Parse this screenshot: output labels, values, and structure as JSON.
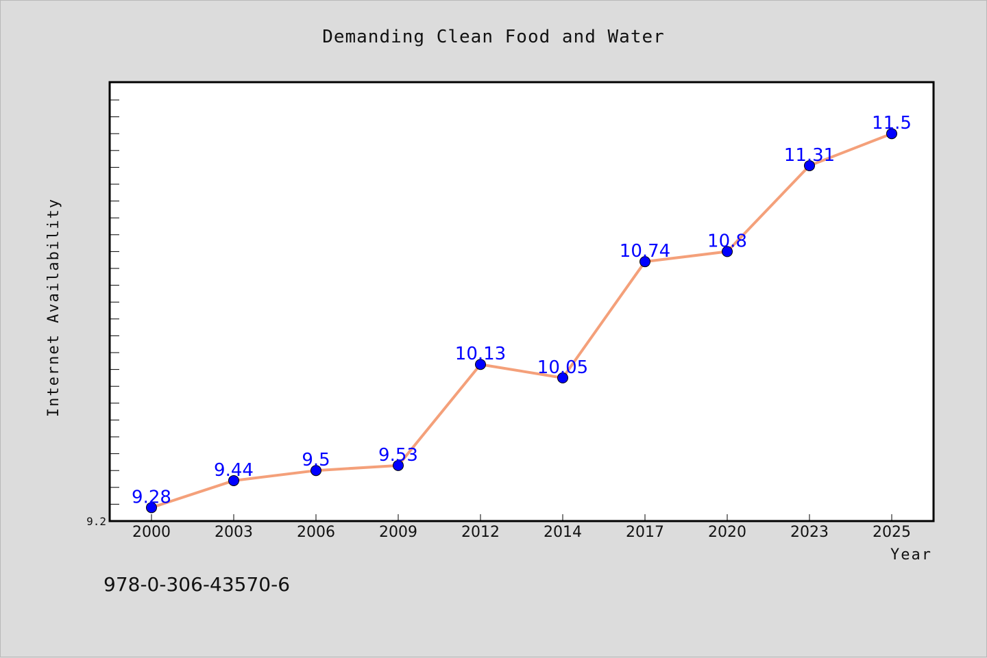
{
  "chart_data": {
    "type": "line",
    "title": "Demanding Clean Food and Water",
    "xlabel": "Year",
    "ylabel": "Internet Availability",
    "categories": [
      "2000",
      "2003",
      "2006",
      "2009",
      "2012",
      "2014",
      "2017",
      "2020",
      "2023",
      "2025"
    ],
    "series": [
      {
        "values": [
          9.28,
          9.44,
          9.5,
          9.53,
          10.13,
          10.05,
          10.74,
          10.8,
          11.31,
          11.5
        ],
        "data_labels": [
          "9.28",
          "9.44",
          "9.5",
          "9.53",
          "10.13",
          "10.05",
          "10.74",
          "10.8",
          "11.31",
          "11.5"
        ],
        "line_color": "#f4a07a",
        "marker_color": "#0000ff"
      }
    ],
    "ylim": [
      9.2,
      11.8
    ],
    "yticks_labeled": [
      "9.2"
    ],
    "grid": false,
    "legend": "none"
  },
  "footer": {
    "isbn": "978-0-306-43570-6"
  },
  "colors": {
    "background": "#dcdcdc",
    "plot_area": "#ffffff",
    "data_label": "#0000ff"
  }
}
